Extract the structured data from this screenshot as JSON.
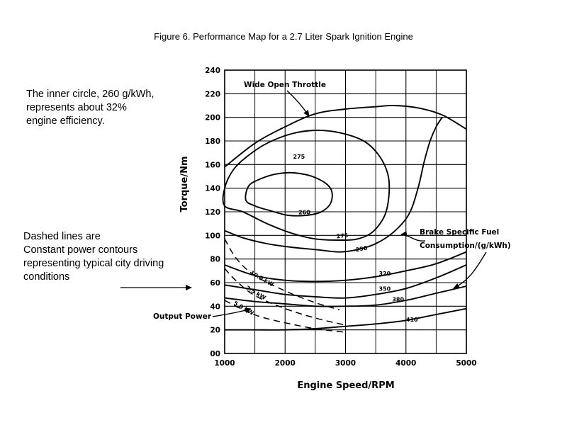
{
  "chart_data": {
    "type": "line",
    "title": "Figure 6.  Performance Map for a 2.7 Liter Spark Ignition Engine",
    "xlabel": "Engine Speed/RPM",
    "ylabel": "Torque/Nm",
    "xlim": [
      1000,
      5000
    ],
    "ylim": [
      0,
      240
    ],
    "x_ticks": [
      "1000",
      "2000",
      "3000",
      "4000",
      "5000"
    ],
    "y_ticks": [
      "00",
      "20",
      "40",
      "60",
      "80",
      "100",
      "120",
      "140",
      "160",
      "180",
      "200",
      "220",
      "240"
    ],
    "grid": true,
    "series": [
      {
        "name": "Wide Open Throttle",
        "style": "solid",
        "points": [
          [
            1000,
            158
          ],
          [
            1500,
            178
          ],
          [
            2000,
            192
          ],
          [
            2500,
            203
          ],
          [
            3000,
            207
          ],
          [
            3500,
            209
          ],
          [
            3800,
            210
          ],
          [
            4200,
            208
          ],
          [
            4600,
            202
          ],
          [
            5000,
            190
          ]
        ]
      },
      {
        "name": "260",
        "style": "solid",
        "closed": true,
        "points": [
          [
            1350,
            130
          ],
          [
            1400,
            142
          ],
          [
            1600,
            148
          ],
          [
            1850,
            152
          ],
          [
            2150,
            153
          ],
          [
            2500,
            149
          ],
          [
            2750,
            140
          ],
          [
            2760,
            128
          ],
          [
            2600,
            120
          ],
          [
            2350,
            117
          ],
          [
            2050,
            117
          ],
          [
            1750,
            121
          ],
          [
            1500,
            125
          ]
        ]
      },
      {
        "name": "275",
        "style": "solid",
        "closed": true,
        "points": [
          [
            1000,
            140
          ],
          [
            1150,
            156
          ],
          [
            1400,
            168
          ],
          [
            1700,
            178
          ],
          [
            2100,
            186
          ],
          [
            2500,
            189
          ],
          [
            2900,
            187
          ],
          [
            3300,
            180
          ],
          [
            3550,
            168
          ],
          [
            3700,
            152
          ],
          [
            3720,
            135
          ],
          [
            3650,
            117
          ],
          [
            3450,
            103
          ],
          [
            3200,
            97
          ],
          [
            2900,
            96
          ],
          [
            2500,
            97
          ],
          [
            2100,
            102
          ],
          [
            1700,
            110
          ],
          [
            1300,
            120
          ],
          [
            1000,
            125
          ]
        ]
      },
      {
        "name": "290",
        "style": "solid",
        "points": [
          [
            1000,
            104
          ],
          [
            1300,
            98
          ],
          [
            1700,
            93
          ],
          [
            2100,
            90
          ],
          [
            2500,
            88
          ],
          [
            2900,
            86
          ],
          [
            3200,
            88
          ],
          [
            3500,
            93
          ],
          [
            3800,
            103
          ],
          [
            4050,
            118
          ],
          [
            4200,
            140
          ],
          [
            4300,
            162
          ],
          [
            4400,
            180
          ],
          [
            4500,
            192
          ],
          [
            4600,
            200
          ]
        ]
      },
      {
        "name": "320",
        "style": "solid",
        "points": [
          [
            1000,
            75
          ],
          [
            1500,
            66
          ],
          [
            2000,
            62
          ],
          [
            2500,
            61
          ],
          [
            3000,
            62
          ],
          [
            3500,
            65
          ],
          [
            4000,
            70
          ],
          [
            4500,
            76
          ],
          [
            5000,
            86
          ]
        ]
      },
      {
        "name": "350",
        "style": "solid",
        "points": [
          [
            1000,
            58
          ],
          [
            1500,
            54
          ],
          [
            2000,
            50
          ],
          [
            2500,
            48
          ],
          [
            3000,
            47
          ],
          [
            3500,
            50
          ],
          [
            4000,
            55
          ],
          [
            4500,
            64
          ],
          [
            5000,
            75
          ]
        ]
      },
      {
        "name": "380",
        "style": "solid",
        "points": [
          [
            1000,
            47
          ],
          [
            1500,
            44
          ],
          [
            2000,
            42
          ],
          [
            2500,
            40
          ],
          [
            3000,
            40
          ],
          [
            3500,
            41
          ],
          [
            4000,
            45
          ],
          [
            4500,
            51
          ],
          [
            5000,
            57
          ]
        ]
      },
      {
        "name": "410",
        "style": "solid",
        "points": [
          [
            1000,
            20
          ],
          [
            1500,
            20
          ],
          [
            2000,
            20
          ],
          [
            2500,
            21
          ],
          [
            3000,
            23
          ],
          [
            3500,
            25
          ],
          [
            4000,
            28
          ],
          [
            4500,
            33
          ],
          [
            5000,
            38
          ]
        ]
      },
      {
        "name": "10.0 kW",
        "style": "dashed",
        "points": [
          [
            1000,
            97
          ],
          [
            1200,
            80
          ],
          [
            1500,
            66
          ],
          [
            2000,
            53
          ],
          [
            2500,
            43
          ],
          [
            2900,
            37
          ]
        ]
      },
      {
        "name": "7.5 kW",
        "style": "dashed",
        "points": [
          [
            1000,
            72
          ],
          [
            1200,
            61
          ],
          [
            1500,
            49
          ],
          [
            2000,
            38
          ],
          [
            2500,
            30
          ],
          [
            3000,
            24
          ]
        ]
      },
      {
        "name": "5.0 kW",
        "style": "dashed",
        "points": [
          [
            1000,
            45
          ],
          [
            1300,
            37
          ],
          [
            1600,
            31
          ],
          [
            2000,
            26
          ],
          [
            2500,
            21
          ],
          [
            3000,
            18
          ]
        ]
      }
    ],
    "annotations": {
      "wot": "Wide Open Throttle",
      "bsfc_line1": "Brake Specific Fuel",
      "bsfc_line2": "Consumption/(g/kWh)",
      "output_power": "Output Power"
    }
  },
  "notes": {
    "inner_circle": [
      "The inner circle, 260 g/kWh,",
      "represents about 32%",
      "engine efficiency."
    ],
    "dashed_lines": [
      "Dashed lines are",
      "Constant power contours",
      "representing typical city driving",
      "conditions"
    ]
  }
}
